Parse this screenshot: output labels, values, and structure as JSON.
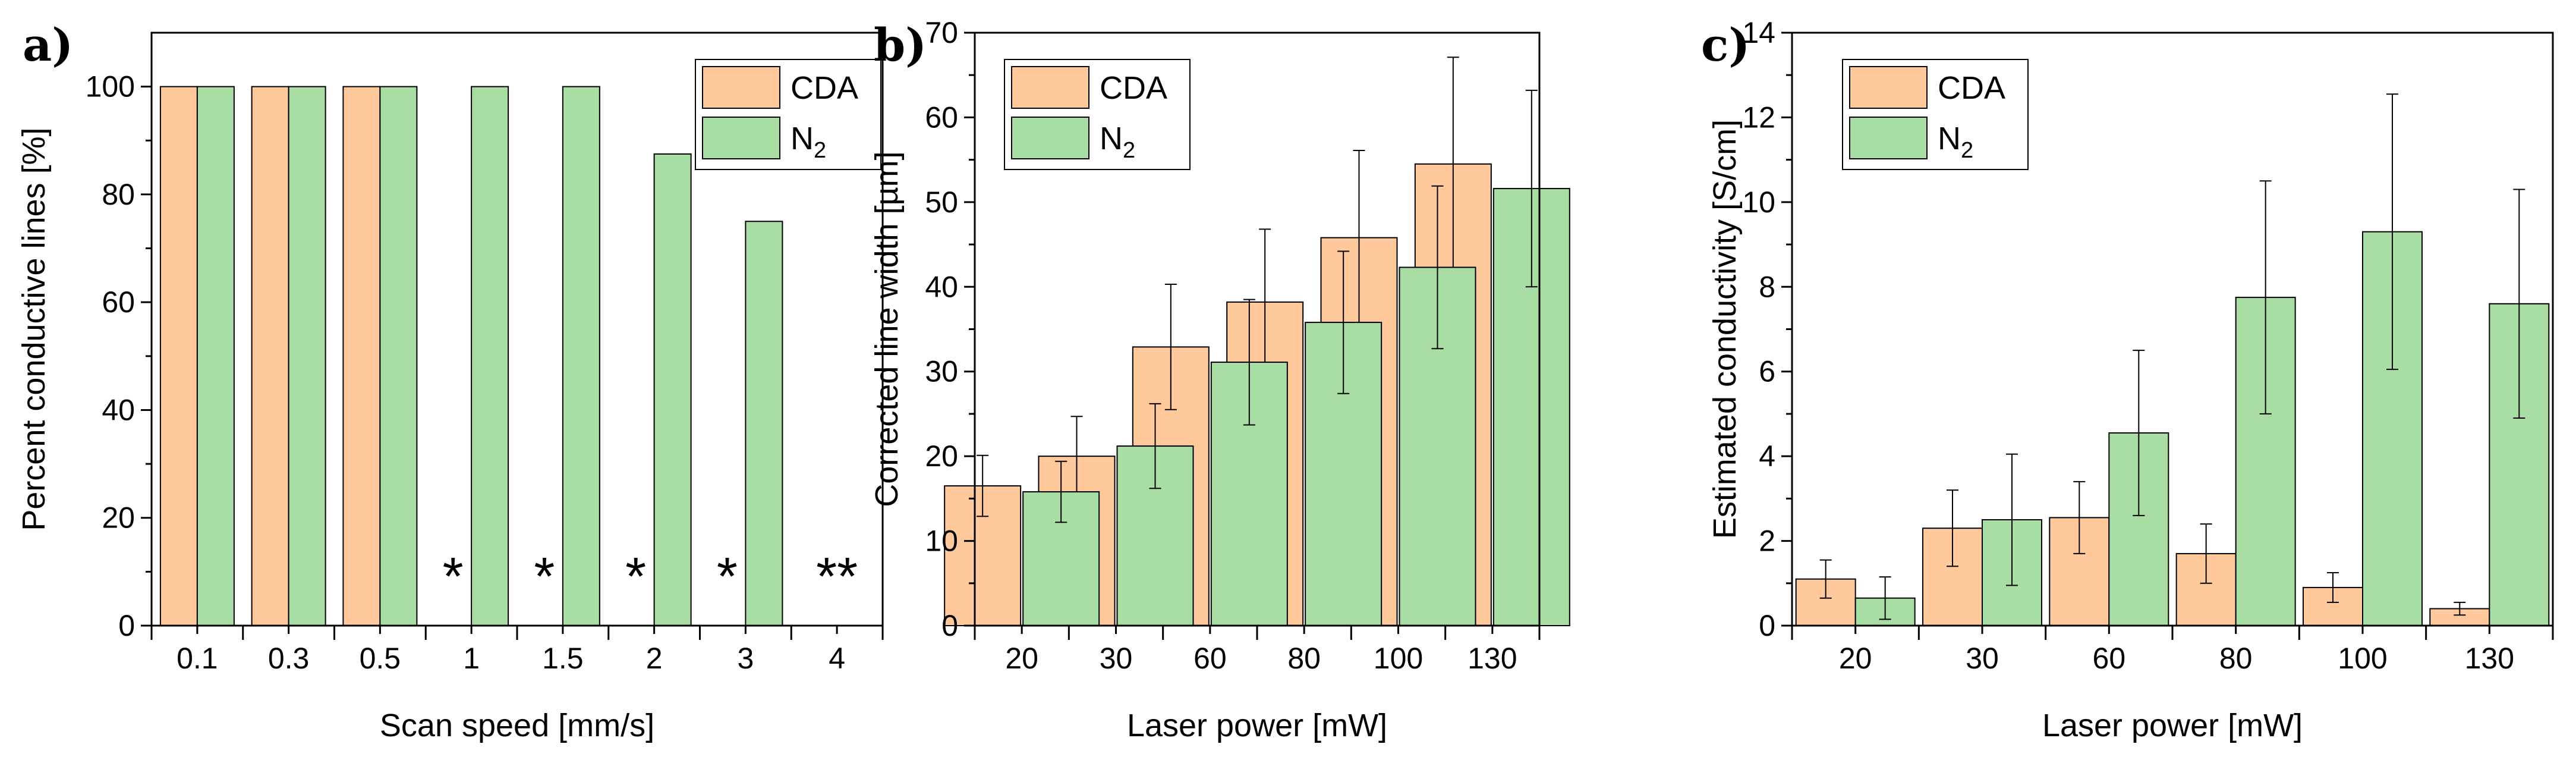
{
  "colors": {
    "cda": "#FFC99C",
    "n2": "#A8DDA3",
    "stroke": "#000000"
  },
  "chart_data": [
    {
      "panel": "a)",
      "type": "bar",
      "title": "",
      "xlabel": "Scan speed [mm/s]",
      "ylabel": "Percent conductive lines [%]",
      "categories": [
        "0.1",
        "0.3",
        "0.5",
        "1",
        "1.5",
        "2",
        "3",
        "4"
      ],
      "ylim": [
        0,
        110
      ],
      "yticks": [
        0,
        20,
        40,
        60,
        80,
        100
      ],
      "ytick_labels": [
        "0",
        "20",
        "40",
        "60",
        "80",
        "100"
      ],
      "legend": {
        "position": "top-right",
        "entries": [
          [
            "CDA",
            ""
          ],
          [
            "N",
            "2"
          ]
        ]
      },
      "series": [
        {
          "name": "CDA",
          "values": [
            100,
            100,
            100,
            0,
            0,
            0,
            0,
            0
          ]
        },
        {
          "name": "N2",
          "values": [
            100,
            100,
            100,
            100,
            100,
            87.5,
            75,
            0
          ]
        }
      ],
      "annotations": [
        "",
        "",
        "",
        "*",
        "*",
        "*",
        "*",
        "**"
      ]
    },
    {
      "panel": "b)",
      "type": "bar",
      "title": "",
      "xlabel": "Laser power [mW]",
      "ylabel": "Corrected line width [µm]",
      "categories": [
        "20",
        "30",
        "60",
        "80",
        "100",
        "130"
      ],
      "ylim": [
        0,
        70
      ],
      "yticks": [
        0,
        10,
        20,
        30,
        40,
        50,
        60,
        70
      ],
      "ytick_labels": [
        "0",
        "10",
        "20",
        "30",
        "40",
        "50",
        "60",
        "70"
      ],
      "legend": {
        "position": "top-left",
        "entries": [
          [
            "CDA",
            ""
          ],
          [
            "N",
            "2"
          ]
        ]
      },
      "series": [
        {
          "name": "CDA",
          "values": [
            16.5,
            20,
            32.9,
            38.2,
            45.8,
            54.5
          ],
          "errors": [
            3.6,
            4.7,
            7.4,
            8.6,
            10.3,
            12.6
          ]
        },
        {
          "name": "N2",
          "values": [
            15.8,
            21.2,
            31.1,
            35.8,
            42.3,
            51.6
          ],
          "errors": [
            3.6,
            5.0,
            7.4,
            8.4,
            9.6,
            11.6
          ]
        }
      ]
    },
    {
      "panel": "c)",
      "type": "bar",
      "title": "",
      "xlabel": "Laser power [mW]",
      "ylabel": "Estimated conductivity [S/cm]",
      "categories": [
        "20",
        "30",
        "60",
        "80",
        "100",
        "130"
      ],
      "ylim": [
        0,
        14
      ],
      "yticks": [
        0,
        2,
        4,
        6,
        8,
        10,
        12,
        14
      ],
      "ytick_labels": [
        "0",
        "2",
        "4",
        "6",
        "8",
        "10",
        "12",
        "14"
      ],
      "legend": {
        "position": "top-left",
        "entries": [
          [
            "CDA",
            ""
          ],
          [
            "N",
            "2"
          ]
        ]
      },
      "series": [
        {
          "name": "CDA",
          "values": [
            1.1,
            2.3,
            2.55,
            1.7,
            0.9,
            0.4
          ],
          "errors": [
            0.45,
            0.9,
            0.85,
            0.7,
            0.35,
            0.15
          ]
        },
        {
          "name": "N2",
          "values": [
            0.65,
            2.5,
            4.55,
            7.75,
            9.3,
            7.6
          ],
          "errors": [
            0.5,
            1.55,
            1.95,
            2.75,
            3.25,
            2.7
          ]
        }
      ]
    }
  ]
}
